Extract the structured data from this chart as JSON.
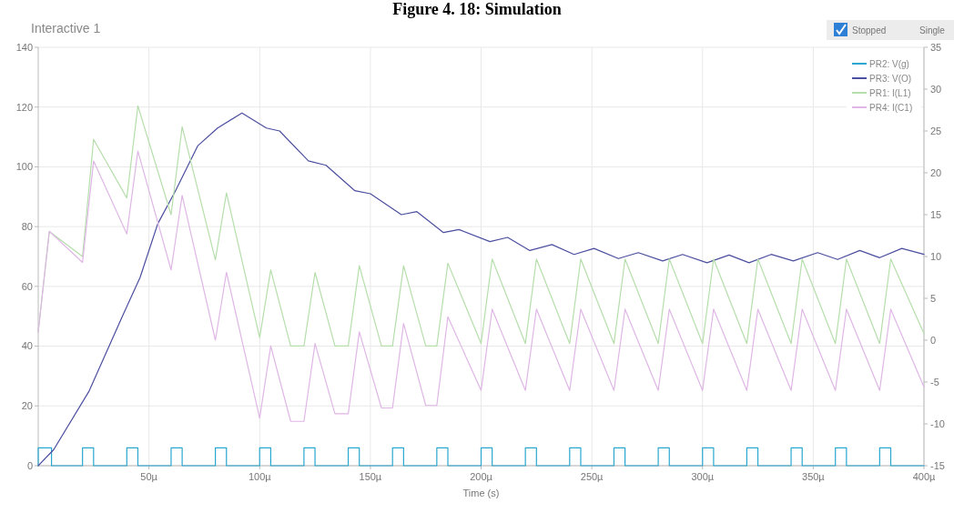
{
  "chart_data": {
    "type": "line",
    "title": "Interactive 1",
    "subtitle": "Figure 4. 18: Simulation",
    "xlabel": "Time (s)",
    "annotations": [
      "Stopped",
      "Single"
    ],
    "xlim": [
      0,
      400
    ],
    "xticks": [
      {
        "value": 50,
        "label": "50µ"
      },
      {
        "value": 100,
        "label": "100µ"
      },
      {
        "value": 150,
        "label": "150µ"
      },
      {
        "value": 200,
        "label": "200µ"
      },
      {
        "value": 250,
        "label": "250µ"
      },
      {
        "value": 300,
        "label": "300µ"
      },
      {
        "value": 350,
        "label": "350µ"
      },
      {
        "value": 400,
        "label": "400µ"
      }
    ],
    "ylim": [
      0,
      140
    ],
    "yticks": [
      0,
      20,
      40,
      60,
      80,
      100,
      120,
      140
    ],
    "y2lim": [
      -15,
      35
    ],
    "y2ticks": [
      -15,
      -10,
      -5,
      0,
      5,
      10,
      15,
      20,
      25,
      30,
      35
    ],
    "grid": true,
    "legend": "top right",
    "line_style": "solid",
    "marker": "none",
    "series": [
      {
        "name": "PR2: V(g)",
        "color": "#2aa7cf",
        "x": [
          0,
          0,
          6,
          6,
          20,
          20,
          25,
          25,
          40,
          40,
          45,
          45,
          60,
          60,
          65,
          65,
          80,
          80,
          85,
          85,
          100,
          100,
          105,
          105,
          120,
          120,
          125,
          125,
          140,
          140,
          145,
          145,
          160,
          160,
          165,
          165,
          180,
          180,
          185,
          185,
          200,
          200,
          205,
          205,
          220,
          220,
          225,
          225,
          240,
          240,
          245,
          245,
          260,
          260,
          265,
          265,
          280,
          280,
          285,
          285,
          300,
          300,
          305,
          305,
          320,
          320,
          325,
          325,
          340,
          340,
          345,
          345,
          360,
          360,
          365,
          365,
          380,
          380,
          385,
          385,
          400
        ],
        "values": [
          0,
          6,
          6,
          0,
          0,
          6,
          6,
          0,
          0,
          6,
          6,
          0,
          0,
          6,
          6,
          0,
          0,
          6,
          6,
          0,
          0,
          6,
          6,
          0,
          0,
          6,
          6,
          0,
          0,
          6,
          6,
          0,
          0,
          6,
          6,
          0,
          0,
          6,
          6,
          0,
          0,
          6,
          6,
          0,
          0,
          6,
          6,
          0,
          0,
          6,
          6,
          0,
          0,
          6,
          6,
          0,
          0,
          6,
          6,
          0,
          0,
          6,
          6,
          0,
          0,
          6,
          6,
          0,
          0,
          6,
          6,
          0,
          0,
          6,
          6,
          0,
          0,
          6,
          6,
          0,
          0
        ]
      },
      {
        "name": "PR3: V(O)",
        "color": "#4b4f9e",
        "x": [
          0,
          7,
          23,
          38,
          46,
          54,
          62,
          72,
          81,
          92,
          103,
          109,
          122,
          130,
          143,
          150,
          164,
          171,
          183,
          190,
          204,
          212,
          222,
          232,
          242,
          251,
          262,
          271,
          282,
          291,
          302,
          312,
          321,
          331,
          341,
          352,
          361,
          371,
          380,
          390,
          400
        ],
        "values": [
          0,
          5.4,
          25,
          50,
          63,
          81,
          92,
          107,
          113,
          118,
          113,
          112,
          102,
          100.5,
          92,
          91,
          84,
          85,
          78,
          79,
          75,
          76.4,
          72,
          74,
          70.7,
          72.7,
          69.3,
          71.3,
          68.5,
          70.7,
          67.9,
          70.5,
          67.9,
          70.7,
          68.5,
          71.3,
          69,
          72,
          69.6,
          72.7,
          70.7
        ]
      },
      {
        "name": "PR1: I(L1)",
        "color": "#b5deab",
        "axis": "y2",
        "x": [
          0,
          5,
          20,
          25,
          40,
          45,
          60,
          65,
          80,
          85,
          100,
          105,
          114,
          120,
          125,
          134,
          140,
          145,
          155,
          160,
          165,
          175,
          180,
          185,
          200,
          205,
          220,
          225,
          240,
          245,
          260,
          265,
          280,
          285,
          300,
          305,
          320,
          325,
          340,
          345,
          360,
          365,
          380,
          385,
          400
        ],
        "values": [
          1,
          13,
          10,
          24,
          17,
          28,
          15,
          25.5,
          9.6,
          17.6,
          0.3,
          8.4,
          -0.7,
          -0.7,
          8.1,
          -0.7,
          -0.7,
          8.9,
          -0.7,
          -0.7,
          8.9,
          -0.7,
          -0.7,
          9.2,
          -0.4,
          9.7,
          -0.4,
          9.7,
          -0.4,
          9.7,
          -0.4,
          9.7,
          -0.4,
          9.7,
          -0.4,
          9.7,
          -0.4,
          9.7,
          -0.4,
          9.7,
          -0.4,
          9.7,
          -0.4,
          9.7,
          0.8
        ]
      },
      {
        "name": "PR4: I(C1)",
        "color": "#dfb6e6",
        "axis": "y2",
        "x": [
          0,
          5,
          20,
          25,
          40,
          45,
          60,
          65,
          80,
          85,
          100,
          105,
          114,
          120,
          125,
          134,
          140,
          145,
          155,
          160,
          165,
          175,
          180,
          185,
          200,
          205,
          220,
          225,
          240,
          245,
          260,
          265,
          280,
          285,
          300,
          305,
          320,
          325,
          340,
          345,
          360,
          365,
          380,
          385,
          400
        ],
        "values": [
          1,
          13,
          9.3,
          21.4,
          12.7,
          22.6,
          8.4,
          17.3,
          0,
          8.1,
          -9.3,
          -0.7,
          -9.7,
          -9.7,
          -0.4,
          -8.8,
          -8.8,
          1,
          -8.1,
          -8.1,
          2,
          -7.8,
          -7.8,
          2.8,
          -6,
          3.7,
          -6,
          3.7,
          -6,
          3.7,
          -6,
          3.7,
          -6,
          3.7,
          -6,
          3.7,
          -6,
          3.7,
          -6,
          3.7,
          -6,
          3.7,
          -6,
          3.7,
          -5.6
        ]
      }
    ]
  }
}
